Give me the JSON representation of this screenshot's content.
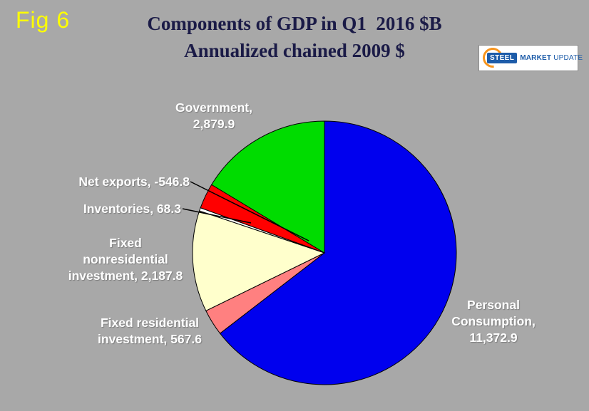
{
  "fig_label": "Fig 6",
  "header": {
    "title_line1": "Components of GDP in Q1  2016 $B",
    "title_line2": "Annualized chained 2009 $"
  },
  "logo": {
    "steel": "STEEL",
    "market": "MARKET",
    "update": "UPDATE"
  },
  "chart_data": {
    "type": "pie",
    "title": "Components of GDP in Q1 2016 $B — Annualized chained 2009 $",
    "start_angle_deg": 0,
    "direction": "clockwise",
    "legend": "none",
    "slices": [
      {
        "name": "Personal Consumption",
        "value": 11372.9,
        "color": "#0000EE",
        "label": "Personal\nConsumption,\n11,372.9"
      },
      {
        "name": "Fixed residential investment",
        "value": 567.6,
        "color": "#FF8080",
        "label": "Fixed residential\ninvestment, 567.6"
      },
      {
        "name": "Fixed nonresidential investment",
        "value": 2187.8,
        "color": "#FFFFCC",
        "label": "Fixed\nnonresidential\ninvestment, 2,187.8"
      },
      {
        "name": "Inventories",
        "value": 68.3,
        "color": "#FFFFFF",
        "label": "Inventories, 68.3"
      },
      {
        "name": "Net exports",
        "value": -546.8,
        "color": "#FF0000",
        "label": "Net exports, -546.8"
      },
      {
        "name": "Government",
        "value": 2879.9,
        "color": "#00DC00",
        "label": "Government,\n2,879.9"
      }
    ]
  },
  "colors": {
    "background": "#A8A8A8",
    "title_text": "#1B1B47",
    "fig_label_text": "#FFFF00",
    "slice_label_text": "#FFFFFF",
    "leader_line": "#000000",
    "logo_blue": "#1D5CA9",
    "logo_orange": "#F7941D"
  }
}
